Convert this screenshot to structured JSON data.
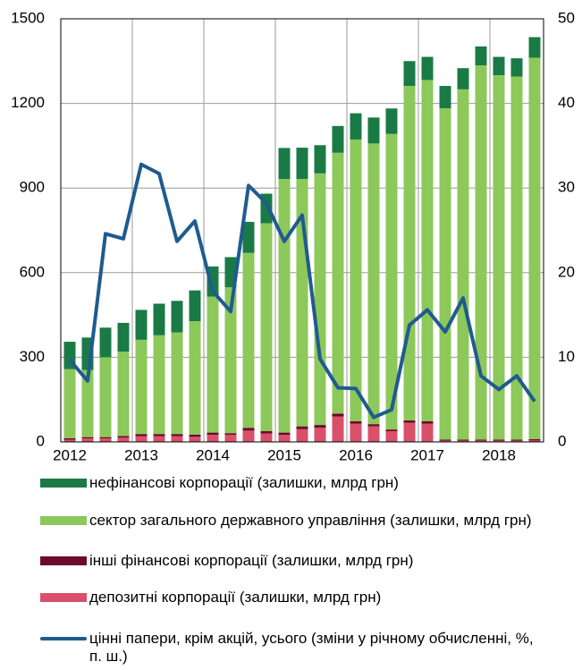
{
  "chart_data": {
    "type": "bar",
    "categories": [
      "2012",
      null,
      null,
      null,
      "2013",
      null,
      null,
      null,
      "2014",
      null,
      null,
      null,
      "2015",
      null,
      null,
      null,
      "2016",
      null,
      null,
      null,
      "2017",
      null,
      null,
      null,
      "2018",
      null,
      null
    ],
    "series": [
      {
        "name": "нефінансові корпорації (залишки, млрд грн)",
        "color": "#1a7a45",
        "values": [
          97,
          115,
          105,
          102,
          106,
          112,
          112,
          109,
          107,
          107,
          110,
          105,
          110,
          111,
          100,
          95,
          93,
          92,
          90,
          88,
          82,
          79,
          75,
          67,
          65,
          65,
          73
        ]
      },
      {
        "name": "сектор загального державного управління (залишки, млрд грн)",
        "color": "#8dc85a",
        "values": [
          245,
          238,
          283,
          299,
          334,
          350,
          360,
          402,
          482,
          517,
          620,
          737,
          899,
          877,
          892,
          925,
          999,
          995,
          1048,
          1186,
          1210,
          1175,
          1242,
          1327,
          1292,
          1287,
          1352
        ]
      },
      {
        "name": "інші фінансові корпорації (залишки, млрд грн)",
        "color": "#6b0a2a",
        "values": [
          5,
          5,
          5,
          6,
          8,
          8,
          8,
          8,
          8,
          6,
          10,
          8,
          8,
          10,
          10,
          10,
          8,
          8,
          6,
          8,
          8,
          4,
          4,
          4,
          4,
          4,
          5
        ]
      },
      {
        "name": "депозитні корпорації (залишки, млрд грн)",
        "color": "#d9506a",
        "values": [
          8,
          12,
          12,
          15,
          20,
          20,
          20,
          18,
          25,
          25,
          40,
          30,
          25,
          45,
          50,
          90,
          65,
          55,
          38,
          68,
          65,
          4,
          4,
          4,
          4,
          4,
          5
        ]
      },
      {
        "name": "цінні папери, крім акцій, усього (зміни у річному обчисленні, %, п. ш.)",
        "color": "#1f5b8f",
        "axis": "y2",
        "values": [
          9.7,
          7.2,
          24.6,
          24.0,
          32.8,
          31.7,
          23.7,
          26.1,
          17.8,
          15.4,
          30.3,
          28.2,
          23.7,
          26.8,
          9.8,
          6.4,
          6.3,
          2.9,
          3.8,
          13.8,
          15.6,
          13.0,
          17.0,
          7.8,
          6.2,
          7.8,
          4.8
        ]
      }
    ],
    "ylim": [
      0,
      1500
    ],
    "yticks": [
      0,
      300,
      600,
      900,
      1200,
      1500
    ],
    "y2lim": [
      0,
      50
    ],
    "y2ticks": [
      0,
      10,
      20,
      30,
      40,
      50
    ],
    "grid": true
  }
}
